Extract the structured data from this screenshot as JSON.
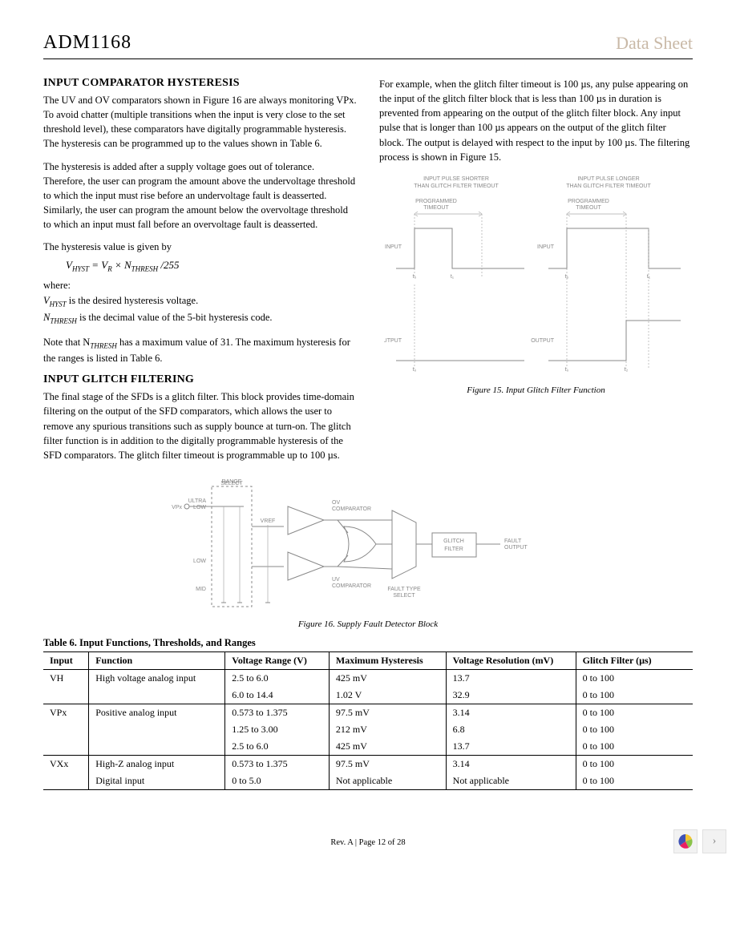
{
  "header": {
    "part_number": "ADM1168",
    "datasheet_label": "Data Sheet"
  },
  "left_column": {
    "heading1": "INPUT COMPARATOR HYSTERESIS",
    "para1": "The UV and OV comparators shown in Figure 16 are always monitoring VPx. To avoid chatter (multiple transitions when the input is very close to the set threshold level), these comparators have digitally programmable hysteresis. The hysteresis can be programmed up to the values shown in Table 6.",
    "para2": "The hysteresis is added after a supply voltage goes out of tolerance. Therefore, the user can program the amount above the undervoltage threshold to which the input must rise before an undervoltage fault is deasserted. Similarly, the user can program the amount below the overvoltage threshold to which an input must fall before an overvoltage fault is deasserted.",
    "para3": "The hysteresis value is given by",
    "equation": "V_HYST = V_R × N_THRESH / 255",
    "where_label": "where:",
    "where_line1_sym": "V",
    "where_line1_sub": "HYST",
    "where_line1_rest": " is the desired hysteresis voltage.",
    "where_line2_sym": "N",
    "where_line2_sub": "THRESH",
    "where_line2_rest": " is the decimal value of the 5-bit hysteresis code.",
    "para4": "Note that N_THRESH has a maximum value of 31. The maximum hysteresis for the ranges is listed in Table 6.",
    "heading2": "INPUT GLITCH FILTERING",
    "para5": "The final stage of the SFDs is a glitch filter. This block provides time-domain filtering on the output of the SFD comparators, which allows the user to remove any spurious transitions such as supply bounce at turn-on. The glitch filter function is in addition to the digitally programmable hysteresis of the SFD comparators. The glitch filter timeout is programmable up to 100 µs."
  },
  "right_column": {
    "para1": "For example, when the glitch filter timeout is 100 µs, any pulse appearing on the input of the glitch filter block that is less than 100 µs in duration is prevented from appearing on the output of the glitch filter block. Any input pulse that is longer than 100 µs appears on the output of the glitch filter block. The output is delayed with respect to the input by 100 µs. The filtering process is shown in Figure 15."
  },
  "figure15": {
    "caption": "Figure 15. Input Glitch Filter Function",
    "left_title": "INPUT PULSE SHORTER THAN GLITCH FILTER TIMEOUT",
    "right_title": "INPUT PULSE LONGER THAN GLITCH FILTER TIMEOUT",
    "timeout_label": "PROGRAMMED TIMEOUT",
    "input_label": "INPUT",
    "output_label": "OUTPUT",
    "t0": "t0",
    "t1": "t1",
    "t2": "t2",
    "colors": {
      "line": "#888888",
      "text": "#888888",
      "bg": "#ffffff"
    }
  },
  "figure16": {
    "caption": "Figure 16. Supply Fault Detector Block",
    "labels": {
      "vpx": "VPx",
      "range_select": "RANGE SELECT",
      "ultra_low": "ULTRA LOW",
      "low": "LOW",
      "mid": "MID",
      "vref": "VREF",
      "ov_comp": "OV COMPARATOR",
      "uv_comp": "UV COMPARATOR",
      "fault_type": "FAULT TYPE SELECT",
      "glitch_filter": "GLITCH FILTER",
      "fault_output": "FAULT OUTPUT"
    },
    "colors": {
      "line": "#888888",
      "text": "#888888"
    }
  },
  "table6": {
    "title": "Table 6. Input Functions, Thresholds, and Ranges",
    "columns": [
      "Input",
      "Function",
      "Voltage Range (V)",
      "Maximum Hysteresis",
      "Voltage Resolution (mV)",
      "Glitch Filter (µs)"
    ],
    "rows": [
      {
        "group_start": true,
        "cells": [
          "VH",
          "High voltage analog input",
          "2.5 to 6.0",
          "425 mV",
          "13.7",
          "0 to 100"
        ]
      },
      {
        "group_start": false,
        "cells": [
          "",
          "",
          "6.0 to 14.4",
          "1.02 V",
          "32.9",
          "0 to 100"
        ]
      },
      {
        "group_start": true,
        "cells": [
          "VPx",
          "Positive analog input",
          "0.573 to 1.375",
          "97.5 mV",
          "3.14",
          "0 to 100"
        ]
      },
      {
        "group_start": false,
        "cells": [
          "",
          "",
          "1.25 to 3.00",
          "212 mV",
          "6.8",
          "0 to 100"
        ]
      },
      {
        "group_start": false,
        "cells": [
          "",
          "",
          "2.5 to 6.0",
          "425 mV",
          "13.7",
          "0 to 100"
        ]
      },
      {
        "group_start": true,
        "cells": [
          "VXx",
          "High-Z analog input",
          "0.573 to 1.375",
          "97.5 mV",
          "3.14",
          "0 to 100"
        ]
      },
      {
        "group_start": false,
        "last": true,
        "cells": [
          "",
          "Digital input",
          "0 to 5.0",
          "Not applicable",
          "Not applicable",
          "0 to 100"
        ]
      }
    ],
    "col_widths_pct": [
      7,
      21,
      16,
      18,
      20,
      18
    ]
  },
  "footer": "Rev. A | Page 12 of 28",
  "widget": {
    "next_glyph": "›",
    "logo_colors": [
      "#f4c430",
      "#8bc34a",
      "#e91e63",
      "#3f51b5"
    ]
  }
}
